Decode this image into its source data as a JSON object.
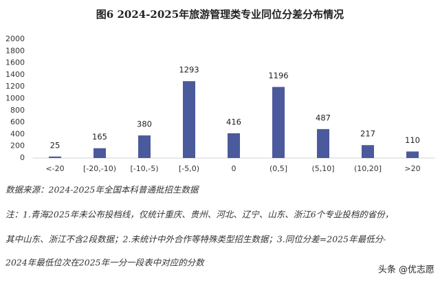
{
  "chart_data": {
    "type": "bar",
    "title": "图6  2024-2025年旅游管理类专业同位分差分布情况",
    "categories": [
      "<-20",
      "[-20,-10)",
      "[-10,-5)",
      "[-5,0)",
      "0",
      "(0,5]",
      "(5,10]",
      "(10,20]",
      ">20"
    ],
    "values": [
      25,
      165,
      380,
      1293,
      416,
      1196,
      487,
      217,
      110
    ],
    "color": "#4b5a9c",
    "ylim": [
      0,
      2000
    ],
    "yticks": [
      0,
      200,
      400,
      600,
      800,
      1000,
      1200,
      1400,
      1600,
      1800,
      2000
    ],
    "grid": false,
    "source": "数据来源：2024-2025年全国本科普通批招生数据",
    "notes": [
      "注：1.青海2025年未公布投档线，仅统计重庆、贵州、河北、辽宁、山东、浙江6个专业投档的省份，",
      "其中山东、浙江不含2段数据；2.未统计中外合作等特殊类型招生数据；3.同位分差=2025年最低分-",
      "2024年最低位次在2025年一分一段表中对应的分数"
    ],
    "attribution": "头条 @优志愿"
  }
}
